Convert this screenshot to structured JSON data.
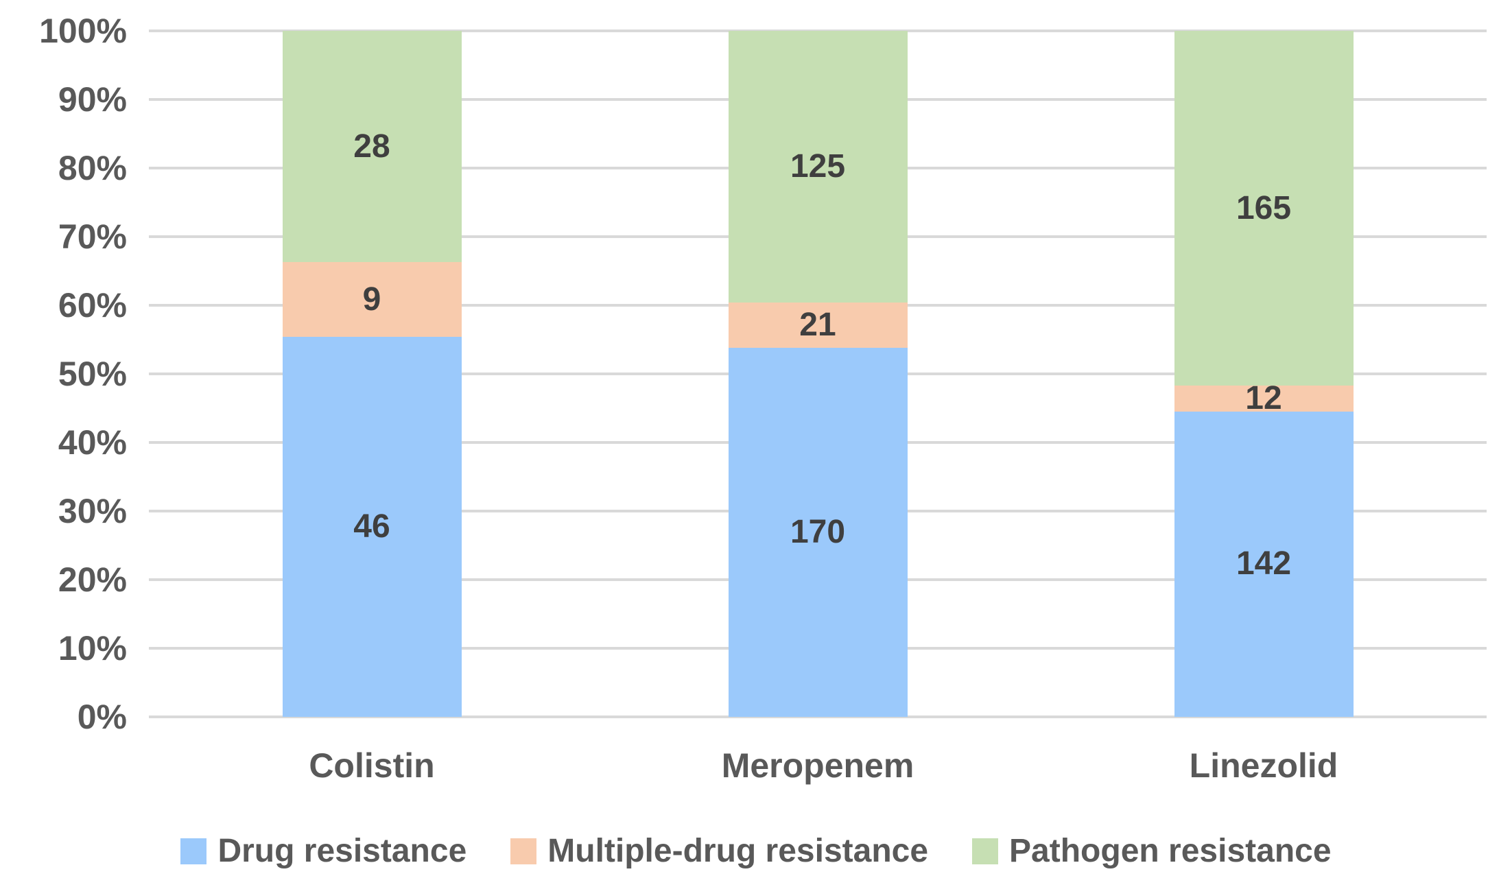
{
  "chart_data": {
    "type": "bar",
    "stacking": "percent",
    "title": "",
    "xlabel": "",
    "ylabel": "",
    "categories": [
      "Colistin",
      "Meropenem",
      "Linezolid"
    ],
    "series": [
      {
        "name": "Drug resistance",
        "color": "#9bc9fb",
        "values": [
          46,
          170,
          142
        ]
      },
      {
        "name": "Multiple-drug resistance",
        "color": "#f8cbad",
        "values": [
          9,
          21,
          12
        ]
      },
      {
        "name": "Pathogen resistance",
        "color": "#c6dfb3",
        "values": [
          28,
          125,
          165
        ]
      }
    ],
    "y_axis": {
      "tick_labels": [
        "0%",
        "10%",
        "20%",
        "30%",
        "40%",
        "50%",
        "60%",
        "70%",
        "80%",
        "90%",
        "100%"
      ],
      "ylim": [
        0,
        100
      ],
      "grid": "on",
      "gridline_color": "#d9d9d9"
    },
    "legend": {
      "position": "bottom",
      "items": [
        "Drug resistance",
        "Multiple-drug resistance",
        "Pathogen resistance"
      ]
    },
    "colors": {
      "axis_text": "#595959",
      "data_label_text": "#3f3f3f",
      "background": "#ffffff"
    }
  }
}
